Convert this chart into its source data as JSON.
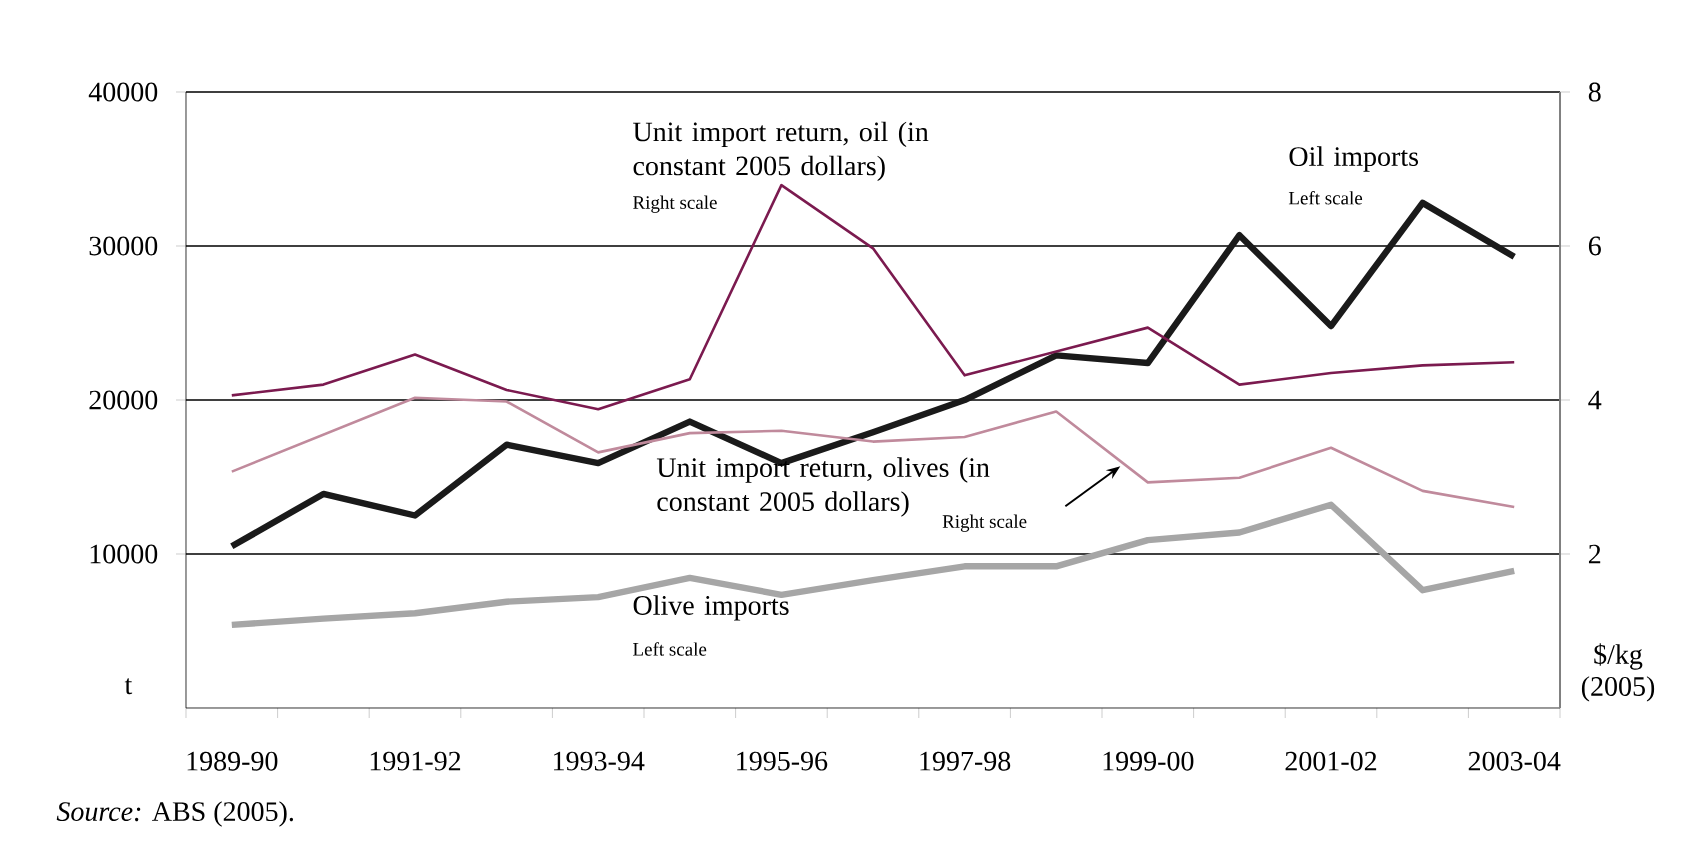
{
  "chart_data": {
    "type": "line",
    "categories": [
      "1989-90",
      null,
      "1991-92",
      null,
      "1993-94",
      null,
      "1995-96",
      null,
      "1997-98",
      null,
      "1999-00",
      null,
      "2001-02",
      null,
      "2003-04"
    ],
    "ylabel": "t",
    "y2label": "$/kg (2005)",
    "ylim": [
      0,
      40000
    ],
    "yticks": [
      10000,
      20000,
      30000,
      40000
    ],
    "y2lim": [
      0,
      8
    ],
    "y2ticks": [
      2,
      4,
      6,
      8
    ],
    "grid": "y",
    "series": [
      {
        "name": "Oil imports",
        "color": "#1a1a1a",
        "values": [
          10500,
          13900,
          12500,
          17100,
          15900,
          18600,
          15900,
          17900,
          20000,
          22900,
          22400,
          30700,
          24800,
          32800,
          29300
        ]
      },
      {
        "name": "Olive imports",
        "color": "#a6a6a6",
        "values": [
          5400,
          5800,
          6150,
          6900,
          7200,
          8450,
          7350,
          8300,
          9200,
          9200,
          10900,
          11400,
          13200,
          7650,
          8900
        ]
      },
      {
        "name": "Unit import return, oil (in constant 2005 dollars)",
        "color": "#7b1a4f",
        "axis": "y2",
        "values": [
          4.06,
          4.2,
          4.59,
          4.13,
          3.88,
          4.27,
          6.79,
          5.97,
          4.32,
          4.63,
          4.94,
          4.2,
          4.35,
          4.45,
          4.49
        ]
      },
      {
        "name": "Unit import return, olives (in constant 2005 dollars)",
        "color": "#c08a9c",
        "axis": "y2",
        "values": [
          3.07,
          3.55,
          4.03,
          3.98,
          3.32,
          3.57,
          3.6,
          3.46,
          3.52,
          3.85,
          2.93,
          2.99,
          3.38,
          2.82,
          2.61
        ]
      }
    ],
    "annotations": [
      "Right scale",
      "Left scale",
      "Right scale",
      "Left scale",
      "*Source:* ABS (2005)."
    ]
  }
}
